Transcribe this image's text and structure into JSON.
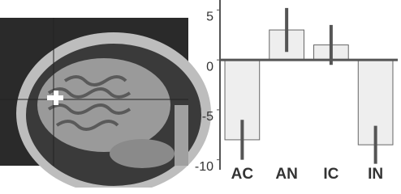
{
  "chart_data": {
    "type": "bar",
    "categories": [
      "AC",
      "AN",
      "IC",
      "IN"
    ],
    "values": [
      -8,
      3,
      1.5,
      -8.5
    ],
    "errors": [
      2,
      2.2,
      2,
      1.9
    ],
    "color": "#eeeeee",
    "ylim": [
      -11,
      6
    ],
    "yticks": [
      5,
      0,
      -5,
      -10
    ],
    "grid": false
  }
}
